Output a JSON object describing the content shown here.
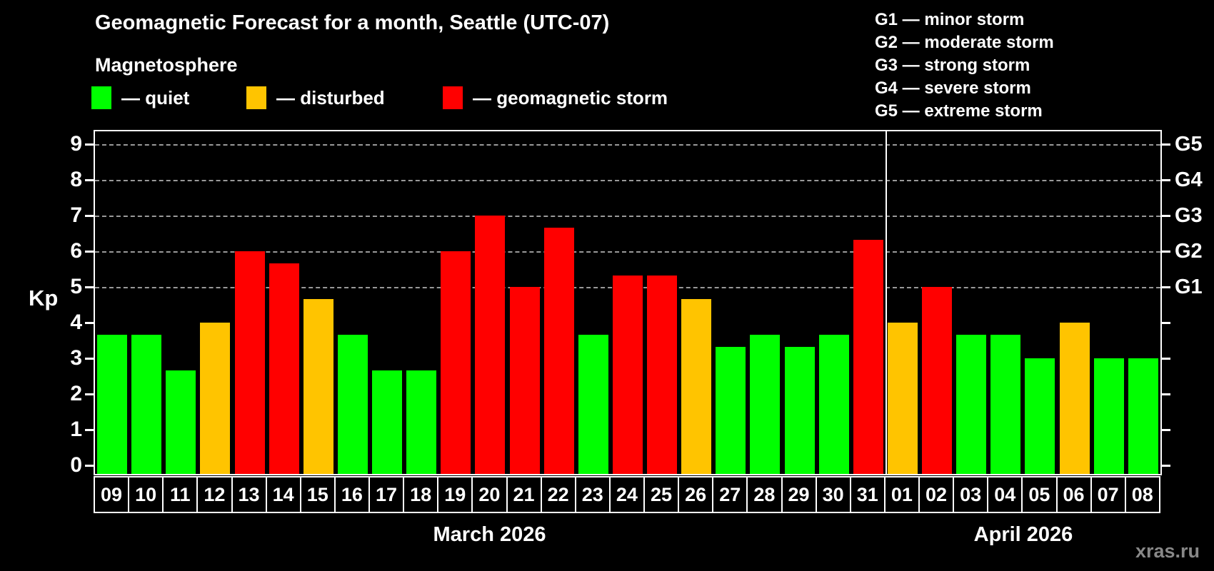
{
  "title": "Geomagnetic Forecast for a month, Seattle (UTC-07)",
  "subtitle": "Magnetosphere",
  "legend": {
    "items": [
      {
        "name": "quiet",
        "label": "— quiet",
        "color": "#00FF00"
      },
      {
        "name": "disturbed",
        "label": "— disturbed",
        "color": "#FFC400"
      },
      {
        "name": "storm",
        "label": "— geomagnetic storm",
        "color": "#FF0000"
      }
    ]
  },
  "g_legend": [
    "G1 — minor storm",
    "G2 — moderate storm",
    "G3 — strong storm",
    "G4 — severe storm",
    "G5 — extreme storm"
  ],
  "watermark": "xras.ru",
  "chart_data": {
    "type": "bar",
    "title": "Geomagnetic Forecast for a month, Seattle (UTC-07)",
    "ylabel": "Kp",
    "ylim": [
      0,
      9.4
    ],
    "yticks": [
      0,
      1,
      2,
      3,
      4,
      5,
      6,
      7,
      8,
      9
    ],
    "gridlines_at_kp": [
      5,
      6,
      7,
      8,
      9
    ],
    "grid": "dashed horizontal at storm levels",
    "legend_position": "top-left",
    "right_axis_labels": [
      {
        "kp": 5,
        "label": "G1"
      },
      {
        "kp": 6,
        "label": "G2"
      },
      {
        "kp": 7,
        "label": "G3"
      },
      {
        "kp": 8,
        "label": "G4"
      },
      {
        "kp": 9,
        "label": "G5"
      }
    ],
    "categories": [
      "09",
      "10",
      "11",
      "12",
      "13",
      "14",
      "15",
      "16",
      "17",
      "18",
      "19",
      "20",
      "21",
      "22",
      "23",
      "24",
      "25",
      "26",
      "27",
      "28",
      "29",
      "30",
      "31",
      "01",
      "02",
      "03",
      "04",
      "05",
      "06",
      "07",
      "08"
    ],
    "values": [
      3.67,
      3.67,
      2.67,
      4,
      6,
      5.67,
      4.67,
      3.67,
      2.67,
      2.67,
      6,
      7,
      5,
      6.67,
      3.67,
      5.33,
      5.33,
      4.67,
      3.33,
      3.67,
      3.33,
      3.67,
      6.33,
      4,
      5,
      3.67,
      3.67,
      3,
      4,
      3,
      3
    ],
    "statuses": [
      "quiet",
      "quiet",
      "quiet",
      "disturbed",
      "storm",
      "storm",
      "disturbed",
      "quiet",
      "quiet",
      "quiet",
      "storm",
      "storm",
      "storm",
      "storm",
      "quiet",
      "storm",
      "storm",
      "disturbed",
      "quiet",
      "quiet",
      "quiet",
      "quiet",
      "storm",
      "disturbed",
      "storm",
      "quiet",
      "quiet",
      "quiet",
      "disturbed",
      "quiet",
      "quiet"
    ],
    "status_colors": {
      "quiet": "#00FF00",
      "disturbed": "#FFC400",
      "storm": "#FF0000"
    },
    "month_separator_after_index": 22,
    "months": [
      {
        "label": "March 2026",
        "first_day": "09",
        "last_day": "31"
      },
      {
        "label": "April 2026",
        "first_day": "01",
        "last_day": "08"
      }
    ]
  }
}
